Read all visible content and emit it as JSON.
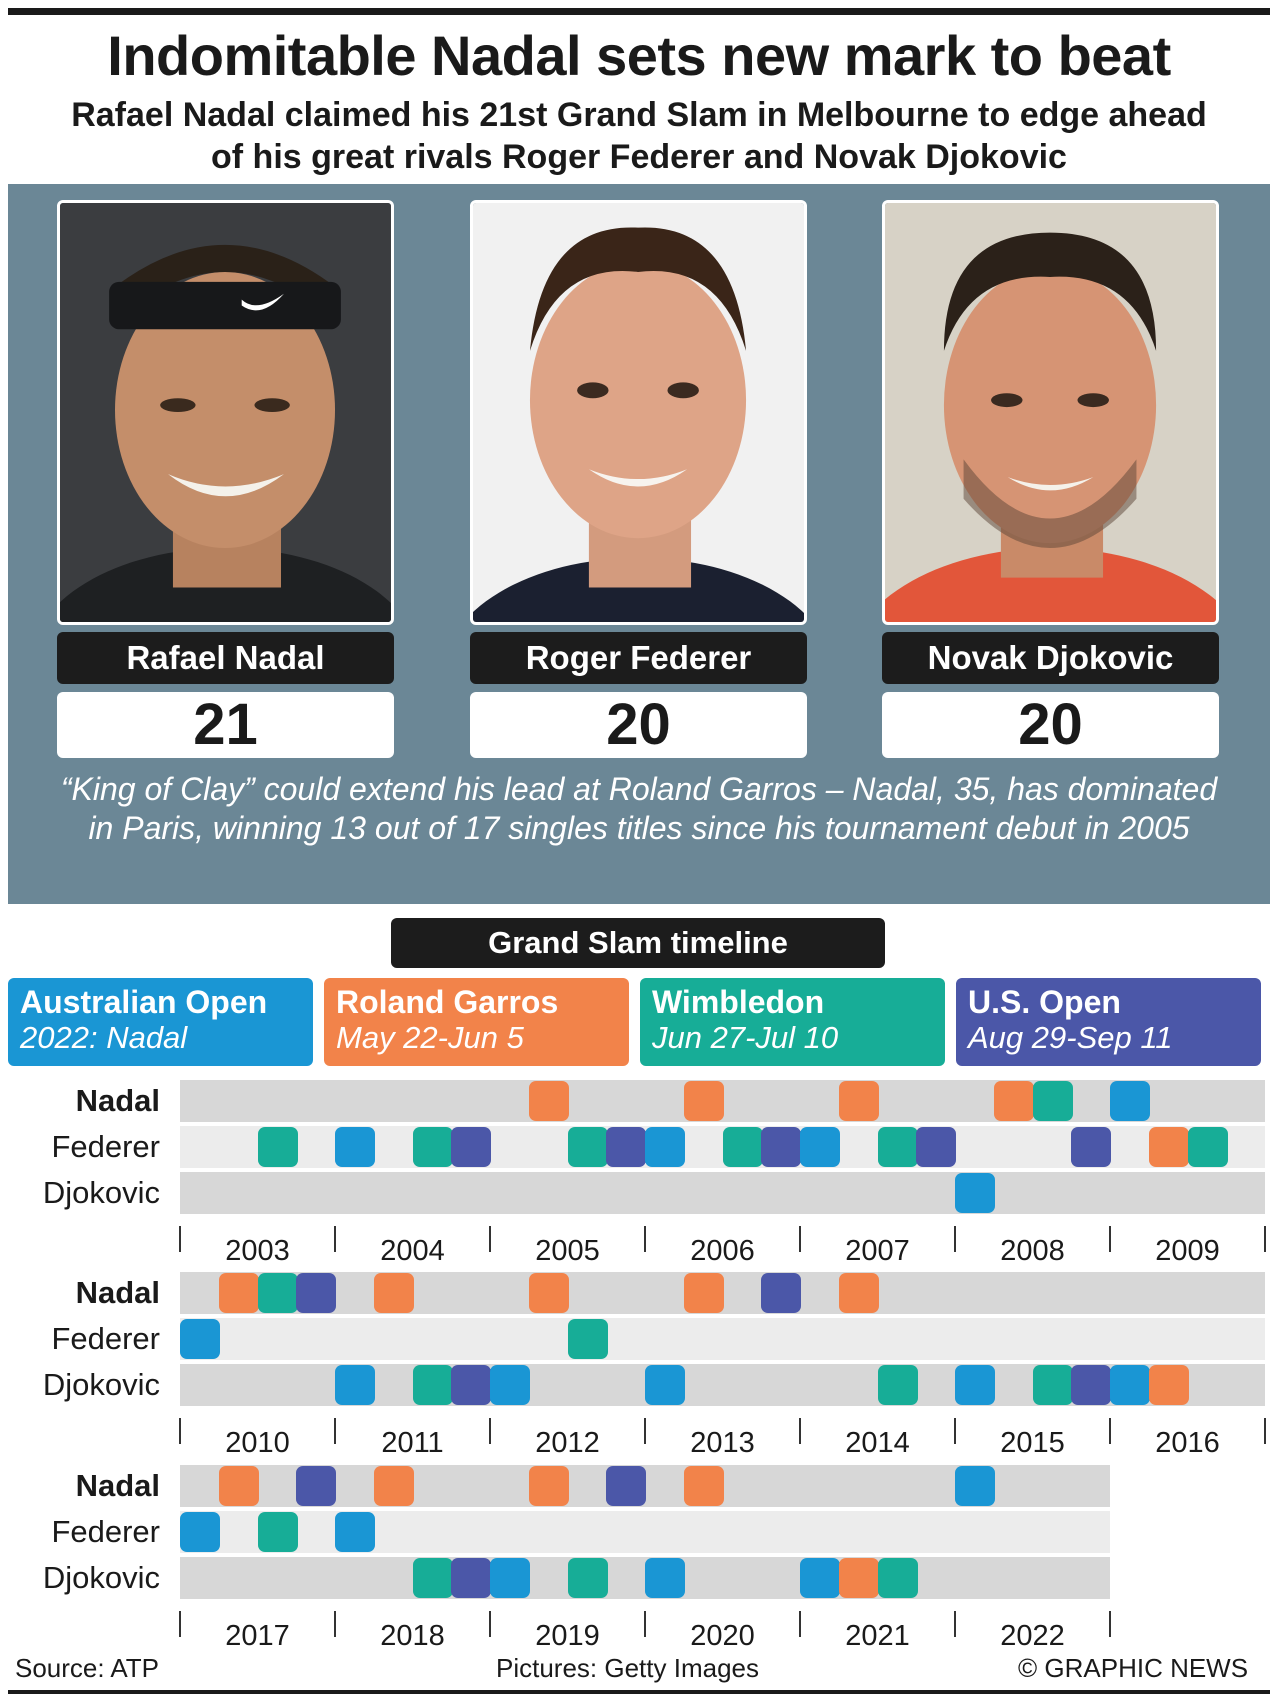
{
  "title": "Indomitable Nadal sets new mark to beat",
  "subtitle": "Rafael Nadal claimed his 21st Grand Slam in Melbourne to edge ahead of his great rivals Roger Federer and Novak Djokovic",
  "players": [
    {
      "name": "Rafael Nadal",
      "titles": "21"
    },
    {
      "name": "Roger Federer",
      "titles": "20"
    },
    {
      "name": "Novak Djokovic",
      "titles": "20"
    }
  ],
  "quote": "“King of Clay” could extend his lead at Roland Garros – Nadal, 35, has dominated in Paris, winning 13 out of 17 singles titles since his tournament debut in 2005",
  "timeline_title": "Grand Slam timeline",
  "tournaments": [
    {
      "name": "Australian Open",
      "detail": "2022: Nadal",
      "color": "#1a96d4"
    },
    {
      "name": "Roland Garros",
      "detail": "May 22-Jun 5",
      "color": "#f2834a"
    },
    {
      "name": "Wimbledon",
      "detail": "Jun 27-Jul 10",
      "color": "#17ad97"
    },
    {
      "name": "U.S. Open",
      "detail": "Aug 29-Sep 11",
      "color": "#4b57a8"
    }
  ],
  "chart_data": {
    "type": "timeline",
    "slam_order": [
      "Australian Open",
      "Roland Garros",
      "Wimbledon",
      "U.S. Open"
    ],
    "rows": [
      "Nadal",
      "Federer",
      "Djokovic"
    ],
    "bands": [
      {
        "years": [
          "2003",
          "2004",
          "2005",
          "2006",
          "2007",
          "2008",
          "2009"
        ],
        "wins": [
          {
            "year": "2003",
            "slam": "Wimbledon",
            "player": "Federer"
          },
          {
            "year": "2004",
            "slam": "Australian Open",
            "player": "Federer"
          },
          {
            "year": "2004",
            "slam": "Wimbledon",
            "player": "Federer"
          },
          {
            "year": "2004",
            "slam": "U.S. Open",
            "player": "Federer"
          },
          {
            "year": "2005",
            "slam": "Roland Garros",
            "player": "Nadal"
          },
          {
            "year": "2005",
            "slam": "Wimbledon",
            "player": "Federer"
          },
          {
            "year": "2005",
            "slam": "U.S. Open",
            "player": "Federer"
          },
          {
            "year": "2006",
            "slam": "Australian Open",
            "player": "Federer"
          },
          {
            "year": "2006",
            "slam": "Roland Garros",
            "player": "Nadal"
          },
          {
            "year": "2006",
            "slam": "Wimbledon",
            "player": "Federer"
          },
          {
            "year": "2006",
            "slam": "U.S. Open",
            "player": "Federer"
          },
          {
            "year": "2007",
            "slam": "Australian Open",
            "player": "Federer"
          },
          {
            "year": "2007",
            "slam": "Roland Garros",
            "player": "Nadal"
          },
          {
            "year": "2007",
            "slam": "Wimbledon",
            "player": "Federer"
          },
          {
            "year": "2007",
            "slam": "U.S. Open",
            "player": "Federer"
          },
          {
            "year": "2008",
            "slam": "Australian Open",
            "player": "Djokovic"
          },
          {
            "year": "2008",
            "slam": "Roland Garros",
            "player": "Nadal"
          },
          {
            "year": "2008",
            "slam": "Wimbledon",
            "player": "Nadal"
          },
          {
            "year": "2008",
            "slam": "U.S. Open",
            "player": "Federer"
          },
          {
            "year": "2009",
            "slam": "Australian Open",
            "player": "Nadal"
          },
          {
            "year": "2009",
            "slam": "Roland Garros",
            "player": "Federer"
          },
          {
            "year": "2009",
            "slam": "Wimbledon",
            "player": "Federer"
          }
        ]
      },
      {
        "years": [
          "2010",
          "2011",
          "2012",
          "2013",
          "2014",
          "2015",
          "2016"
        ],
        "wins": [
          {
            "year": "2010",
            "slam": "Australian Open",
            "player": "Federer"
          },
          {
            "year": "2010",
            "slam": "Roland Garros",
            "player": "Nadal"
          },
          {
            "year": "2010",
            "slam": "Wimbledon",
            "player": "Nadal"
          },
          {
            "year": "2010",
            "slam": "U.S. Open",
            "player": "Nadal"
          },
          {
            "year": "2011",
            "slam": "Australian Open",
            "player": "Djokovic"
          },
          {
            "year": "2011",
            "slam": "Roland Garros",
            "player": "Nadal"
          },
          {
            "year": "2011",
            "slam": "Wimbledon",
            "player": "Djokovic"
          },
          {
            "year": "2011",
            "slam": "U.S. Open",
            "player": "Djokovic"
          },
          {
            "year": "2012",
            "slam": "Australian Open",
            "player": "Djokovic"
          },
          {
            "year": "2012",
            "slam": "Roland Garros",
            "player": "Nadal"
          },
          {
            "year": "2012",
            "slam": "Wimbledon",
            "player": "Federer"
          },
          {
            "year": "2013",
            "slam": "Australian Open",
            "player": "Djokovic"
          },
          {
            "year": "2013",
            "slam": "Roland Garros",
            "player": "Nadal"
          },
          {
            "year": "2013",
            "slam": "U.S. Open",
            "player": "Nadal"
          },
          {
            "year": "2014",
            "slam": "Roland Garros",
            "player": "Nadal"
          },
          {
            "year": "2014",
            "slam": "Wimbledon",
            "player": "Djokovic"
          },
          {
            "year": "2015",
            "slam": "Australian Open",
            "player": "Djokovic"
          },
          {
            "year": "2015",
            "slam": "Wimbledon",
            "player": "Djokovic"
          },
          {
            "year": "2015",
            "slam": "U.S. Open",
            "player": "Djokovic"
          },
          {
            "year": "2016",
            "slam": "Australian Open",
            "player": "Djokovic"
          },
          {
            "year": "2016",
            "slam": "Roland Garros",
            "player": "Djokovic"
          }
        ]
      },
      {
        "years": [
          "2017",
          "2018",
          "2019",
          "2020",
          "2021",
          "2022"
        ],
        "wins": [
          {
            "year": "2017",
            "slam": "Australian Open",
            "player": "Federer"
          },
          {
            "year": "2017",
            "slam": "Roland Garros",
            "player": "Nadal"
          },
          {
            "year": "2017",
            "slam": "Wimbledon",
            "player": "Federer"
          },
          {
            "year": "2017",
            "slam": "U.S. Open",
            "player": "Nadal"
          },
          {
            "year": "2018",
            "slam": "Australian Open",
            "player": "Federer"
          },
          {
            "year": "2018",
            "slam": "Roland Garros",
            "player": "Nadal"
          },
          {
            "year": "2018",
            "slam": "Wimbledon",
            "player": "Djokovic"
          },
          {
            "year": "2018",
            "slam": "U.S. Open",
            "player": "Djokovic"
          },
          {
            "year": "2019",
            "slam": "Australian Open",
            "player": "Djokovic"
          },
          {
            "year": "2019",
            "slam": "Roland Garros",
            "player": "Nadal"
          },
          {
            "year": "2019",
            "slam": "Wimbledon",
            "player": "Djokovic"
          },
          {
            "year": "2019",
            "slam": "U.S. Open",
            "player": "Nadal"
          },
          {
            "year": "2020",
            "slam": "Australian Open",
            "player": "Djokovic"
          },
          {
            "year": "2020",
            "slam": "Roland Garros",
            "player": "Nadal"
          },
          {
            "year": "2021",
            "slam": "Australian Open",
            "player": "Djokovic"
          },
          {
            "year": "2021",
            "slam": "Roland Garros",
            "player": "Djokovic"
          },
          {
            "year": "2021",
            "slam": "Wimbledon",
            "player": "Djokovic"
          },
          {
            "year": "2022",
            "slam": "Australian Open",
            "player": "Nadal"
          }
        ]
      }
    ]
  },
  "footer": {
    "source": "Source: ATP",
    "pictures": "Pictures: Getty Images",
    "credit": "© GRAPHIC NEWS"
  }
}
